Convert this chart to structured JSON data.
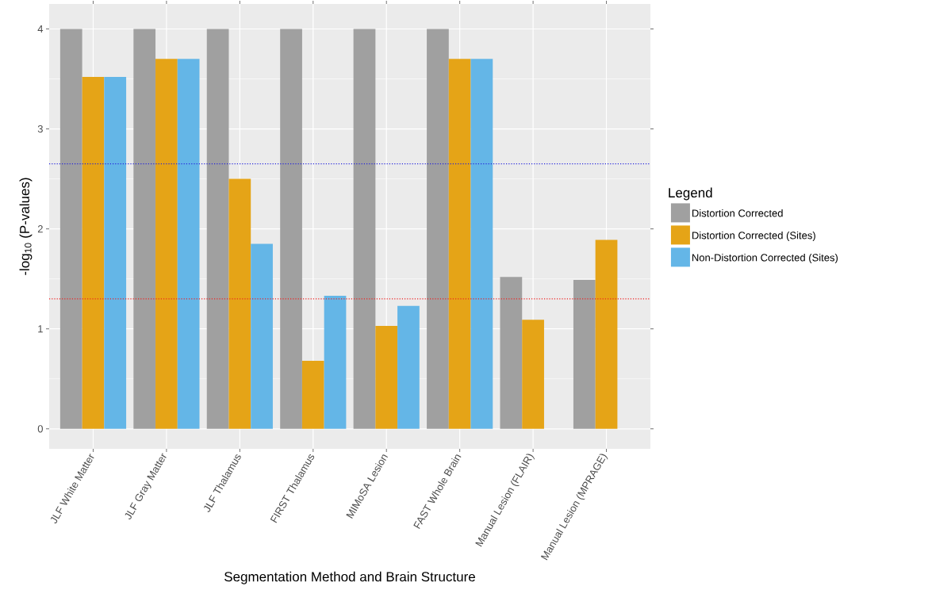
{
  "chart_data": {
    "type": "bar",
    "xlabel": "Segmentation Method and Brain Structure",
    "ylabel": "-log$_{10}$ (P-values)",
    "legend_title": "Legend",
    "categories": [
      "JLF White Matter",
      "JLF Gray Matter",
      "JLF Thalamus",
      "FIRST Thalamus",
      "MIMoSA Lesion",
      "FAST Whole Brain",
      "Manual Lesion (FLAIR)",
      "Manual Lesion (MPRAGE)"
    ],
    "series": [
      {
        "name": "Distortion Corrected",
        "color": "#a0a0a0",
        "values": [
          4,
          4,
          4,
          4,
          4,
          4,
          1.52,
          1.49
        ]
      },
      {
        "name": "Distortion Corrected (Sites)",
        "color": "#e5a417",
        "values": [
          3.52,
          3.7,
          2.5,
          0.68,
          1.03,
          3.7,
          1.09,
          1.89
        ]
      },
      {
        "name": "Non-Distortion Corrected (Sites)",
        "color": "#64b6e7",
        "values": [
          3.52,
          3.7,
          1.85,
          1.33,
          1.23,
          3.7,
          null,
          null
        ]
      }
    ],
    "ylim": [
      -0.2,
      4.25
    ],
    "yticks": [
      0,
      1,
      2,
      3,
      4
    ],
    "ref_lines": [
      {
        "axis": "y",
        "value": 2.65,
        "color": "#2222dd",
        "line_style": "dotted"
      },
      {
        "axis": "y",
        "value": 1.3,
        "color": "#ee2222",
        "line_style": "dotted"
      }
    ],
    "grid": true,
    "legend": "right"
  }
}
